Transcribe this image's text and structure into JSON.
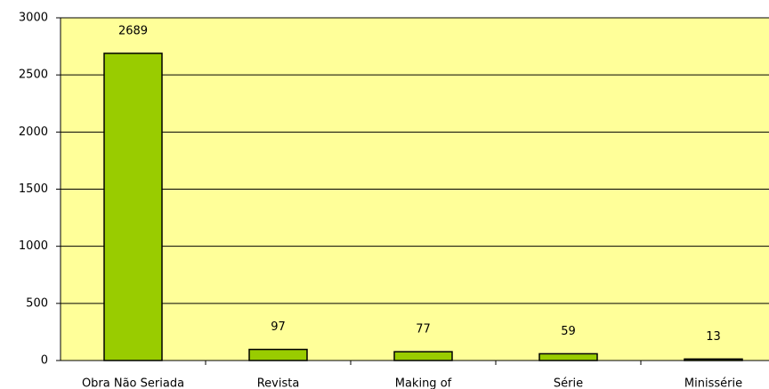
{
  "chart_data": {
    "type": "bar",
    "categories": [
      "Obra Não Seriada",
      "Revista",
      "Making of",
      "Série",
      "Minissérie"
    ],
    "values": [
      2689,
      97,
      77,
      59,
      13
    ],
    "color": "#99cc00",
    "ylim": [
      0,
      3000
    ],
    "yticks": [
      0,
      500,
      1000,
      1500,
      2000,
      2500,
      3000
    ],
    "grid": true
  }
}
